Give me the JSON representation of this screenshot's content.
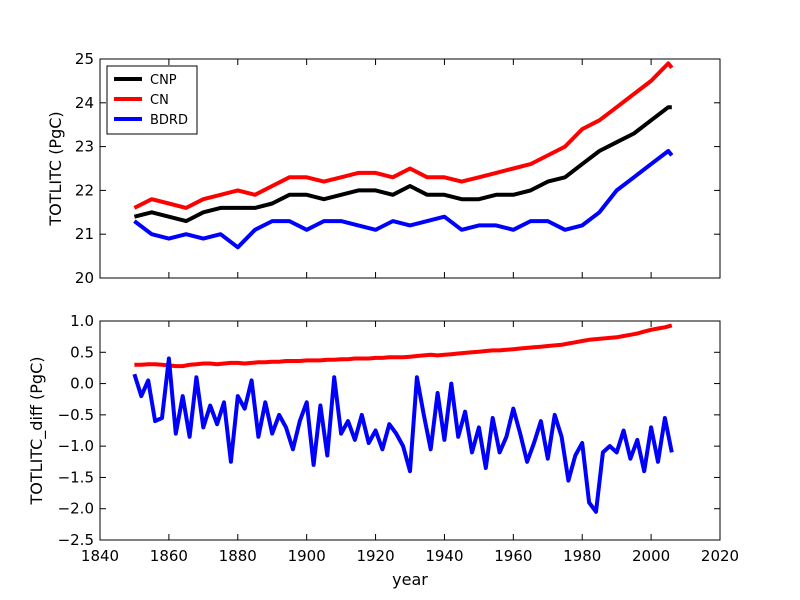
{
  "chart_data": [
    {
      "type": "line",
      "ylabel": "TOTLITC (PgC)",
      "xlabel": "",
      "xlim": [
        1840,
        2020
      ],
      "ylim": [
        20,
        25
      ],
      "yticks": [
        "20",
        "21",
        "22",
        "23",
        "24",
        "25"
      ],
      "legend": {
        "position": "top-left",
        "entries": [
          "CNP",
          "CN",
          "BDRD"
        ]
      },
      "x": [
        1850,
        1855,
        1860,
        1865,
        1870,
        1875,
        1880,
        1885,
        1890,
        1895,
        1900,
        1905,
        1910,
        1915,
        1920,
        1925,
        1930,
        1935,
        1940,
        1945,
        1950,
        1955,
        1960,
        1965,
        1970,
        1975,
        1980,
        1985,
        1990,
        1995,
        2000,
        2005,
        2006
      ],
      "series": [
        {
          "name": "CNP",
          "color": "#000000",
          "values": [
            21.4,
            21.5,
            21.4,
            21.3,
            21.5,
            21.6,
            21.6,
            21.6,
            21.7,
            21.9,
            21.9,
            21.8,
            21.9,
            22.0,
            22.0,
            21.9,
            22.1,
            21.9,
            21.9,
            21.8,
            21.8,
            21.9,
            21.9,
            22.0,
            22.2,
            22.3,
            22.6,
            22.9,
            23.1,
            23.3,
            23.6,
            23.9,
            23.9
          ]
        },
        {
          "name": "CN",
          "color": "#ff0000",
          "values": [
            21.6,
            21.8,
            21.7,
            21.6,
            21.8,
            21.9,
            22.0,
            21.9,
            22.1,
            22.3,
            22.3,
            22.2,
            22.3,
            22.4,
            22.4,
            22.3,
            22.5,
            22.3,
            22.3,
            22.2,
            22.3,
            22.4,
            22.5,
            22.6,
            22.8,
            23.0,
            23.4,
            23.6,
            23.9,
            24.2,
            24.5,
            24.9,
            24.8
          ]
        },
        {
          "name": "BDRD",
          "color": "#0000ff",
          "values": [
            21.3,
            21.0,
            20.9,
            21.0,
            20.9,
            21.0,
            20.7,
            21.1,
            21.3,
            21.3,
            21.1,
            21.3,
            21.3,
            21.2,
            21.1,
            21.3,
            21.2,
            21.3,
            21.4,
            21.1,
            21.2,
            21.2,
            21.1,
            21.3,
            21.3,
            21.1,
            21.2,
            21.5,
            22.0,
            22.3,
            22.6,
            22.9,
            22.8
          ]
        }
      ]
    },
    {
      "type": "line",
      "ylabel": "TOTLITC_diff (PgC)",
      "xlabel": "year",
      "xlim": [
        1840,
        2020
      ],
      "ylim": [
        -2.5,
        1.0
      ],
      "xticks": [
        "1840",
        "1860",
        "1880",
        "1900",
        "1920",
        "1940",
        "1960",
        "1980",
        "2000",
        "2020"
      ],
      "yticks": [
        "−2.5",
        "−2.0",
        "−1.5",
        "−1.0",
        "−0.5",
        "0.0",
        "0.5",
        "1.0"
      ],
      "x": [
        1850,
        1852,
        1854,
        1856,
        1858,
        1860,
        1862,
        1864,
        1866,
        1868,
        1870,
        1872,
        1874,
        1876,
        1878,
        1880,
        1882,
        1884,
        1886,
        1888,
        1890,
        1892,
        1894,
        1896,
        1898,
        1900,
        1902,
        1904,
        1906,
        1908,
        1910,
        1912,
        1914,
        1916,
        1918,
        1920,
        1922,
        1924,
        1926,
        1928,
        1930,
        1932,
        1934,
        1936,
        1938,
        1940,
        1942,
        1944,
        1946,
        1948,
        1950,
        1952,
        1954,
        1956,
        1958,
        1960,
        1962,
        1964,
        1966,
        1968,
        1970,
        1972,
        1974,
        1976,
        1978,
        1980,
        1982,
        1984,
        1986,
        1988,
        1990,
        1992,
        1994,
        1996,
        1998,
        2000,
        2002,
        2004,
        2006
      ],
      "series": [
        {
          "name": "CN",
          "color": "#ff0000",
          "values": [
            0.3,
            0.3,
            0.31,
            0.31,
            0.3,
            0.29,
            0.28,
            0.28,
            0.3,
            0.31,
            0.32,
            0.32,
            0.31,
            0.32,
            0.33,
            0.33,
            0.32,
            0.33,
            0.34,
            0.34,
            0.35,
            0.35,
            0.36,
            0.36,
            0.36,
            0.37,
            0.37,
            0.37,
            0.38,
            0.38,
            0.39,
            0.39,
            0.4,
            0.4,
            0.4,
            0.41,
            0.41,
            0.42,
            0.42,
            0.42,
            0.43,
            0.44,
            0.45,
            0.46,
            0.45,
            0.46,
            0.47,
            0.48,
            0.49,
            0.5,
            0.51,
            0.52,
            0.53,
            0.53,
            0.54,
            0.55,
            0.56,
            0.57,
            0.58,
            0.59,
            0.6,
            0.61,
            0.62,
            0.64,
            0.66,
            0.68,
            0.7,
            0.71,
            0.72,
            0.73,
            0.74,
            0.76,
            0.78,
            0.8,
            0.83,
            0.86,
            0.88,
            0.9,
            0.93
          ]
        },
        {
          "name": "BDRD",
          "color": "#0000ff",
          "values": [
            0.15,
            -0.2,
            0.05,
            -0.6,
            -0.55,
            0.4,
            -0.8,
            -0.2,
            -0.85,
            0.1,
            -0.7,
            -0.35,
            -0.65,
            -0.3,
            -1.25,
            -0.2,
            -0.4,
            0.05,
            -0.85,
            -0.3,
            -0.8,
            -0.5,
            -0.7,
            -1.05,
            -0.6,
            -0.3,
            -1.3,
            -0.35,
            -1.15,
            0.1,
            -0.8,
            -0.6,
            -0.9,
            -0.5,
            -0.95,
            -0.75,
            -1.05,
            -0.65,
            -0.8,
            -1.0,
            -1.4,
            0.1,
            -0.5,
            -1.05,
            -0.15,
            -0.9,
            0.0,
            -0.85,
            -0.45,
            -1.1,
            -0.7,
            -1.35,
            -0.55,
            -1.1,
            -0.85,
            -0.4,
            -0.8,
            -1.25,
            -0.95,
            -0.6,
            -1.2,
            -0.5,
            -0.85,
            -1.55,
            -1.15,
            -0.95,
            -1.9,
            -2.05,
            -1.1,
            -1.0,
            -1.1,
            -0.75,
            -1.2,
            -0.9,
            -1.4,
            -0.7,
            -1.25,
            -0.55,
            -1.1
          ]
        }
      ]
    }
  ]
}
